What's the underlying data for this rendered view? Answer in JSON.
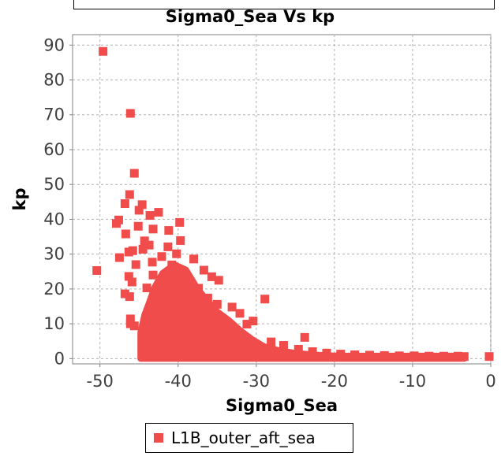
{
  "chart_data": {
    "type": "scatter",
    "title": "Sigma0_Sea Vs kp",
    "xlabel": "Sigma0_Sea",
    "ylabel": "kp",
    "xlim": [
      -53.5,
      0
    ],
    "ylim": [
      -1.5,
      93
    ],
    "x_ticks": [
      -50,
      -40,
      -30,
      -20,
      -10,
      0
    ],
    "x_tick_labels": [
      "-50",
      "-40",
      "-30",
      "-20",
      "-10",
      "0"
    ],
    "y_ticks": [
      0,
      10,
      20,
      30,
      40,
      50,
      60,
      70,
      80,
      90
    ],
    "y_tick_labels": [
      "0",
      "10",
      "20",
      "30",
      "40",
      "50",
      "60",
      "70",
      "80",
      "90"
    ],
    "grid": true,
    "legend_position": "bottom",
    "series": [
      {
        "name": "L1B_outer_aft_sea",
        "color": "#f04c4c",
        "points": [
          [
            -49.6,
            88.2
          ],
          [
            -46.1,
            70.4
          ],
          [
            -45.6,
            53.2
          ],
          [
            -50.4,
            25.3
          ],
          [
            -46.2,
            47.1
          ],
          [
            -46.8,
            44.5
          ],
          [
            -44.6,
            44.2
          ],
          [
            -45.0,
            42.6
          ],
          [
            -42.5,
            42.0
          ],
          [
            -43.6,
            41.1
          ],
          [
            -39.8,
            39.1
          ],
          [
            -47.9,
            38.8
          ],
          [
            -47.6,
            39.8
          ],
          [
            -45.1,
            38.0
          ],
          [
            -43.2,
            37.2
          ],
          [
            -41.2,
            36.8
          ],
          [
            -46.7,
            35.8
          ],
          [
            -39.7,
            33.9
          ],
          [
            -44.3,
            33.8
          ],
          [
            -43.7,
            32.6
          ],
          [
            -41.3,
            32.1
          ],
          [
            -45.8,
            31.0
          ],
          [
            -44.5,
            31.4
          ],
          [
            -40.2,
            30.1
          ],
          [
            -46.3,
            30.6
          ],
          [
            -47.5,
            29.0
          ],
          [
            -42.1,
            29.3
          ],
          [
            -38.0,
            28.6
          ],
          [
            -43.3,
            27.7
          ],
          [
            -45.4,
            27.0
          ],
          [
            -40.8,
            26.9
          ],
          [
            -36.7,
            25.4
          ],
          [
            -35.7,
            23.5
          ],
          [
            -46.3,
            23.6
          ],
          [
            -34.8,
            22.5
          ],
          [
            -45.9,
            22.0
          ],
          [
            -46.8,
            18.6
          ],
          [
            -46.2,
            17.8
          ],
          [
            -28.9,
            17.1
          ],
          [
            -46.1,
            11.4
          ],
          [
            -46.1,
            10.0
          ],
          [
            -45.6,
            9.4
          ],
          [
            -44.0,
            20.3
          ],
          [
            -43.2,
            24.0
          ],
          [
            -37.4,
            20.2
          ],
          [
            -36.2,
            17.4
          ],
          [
            -35.0,
            15.6
          ],
          [
            -33.1,
            14.8
          ],
          [
            -32.1,
            13.0
          ],
          [
            -30.4,
            10.8
          ],
          [
            -31.2,
            9.9
          ],
          [
            -23.8,
            6.1
          ],
          [
            -28.1,
            4.8
          ],
          [
            -26.5,
            3.8
          ],
          [
            -24.6,
            2.7
          ],
          [
            -22.8,
            2.0
          ],
          [
            -21.0,
            1.6
          ],
          [
            -19.2,
            1.3
          ],
          [
            -17.4,
            1.1
          ],
          [
            -15.5,
            1.0
          ],
          [
            -13.6,
            0.9
          ],
          [
            -11.7,
            0.8
          ],
          [
            -9.8,
            0.8
          ],
          [
            -7.9,
            0.7
          ],
          [
            -6.0,
            0.7
          ],
          [
            -4.2,
            0.7
          ],
          [
            -3.4,
            0.6
          ],
          [
            -0.2,
            0.6
          ]
        ]
      }
    ]
  }
}
